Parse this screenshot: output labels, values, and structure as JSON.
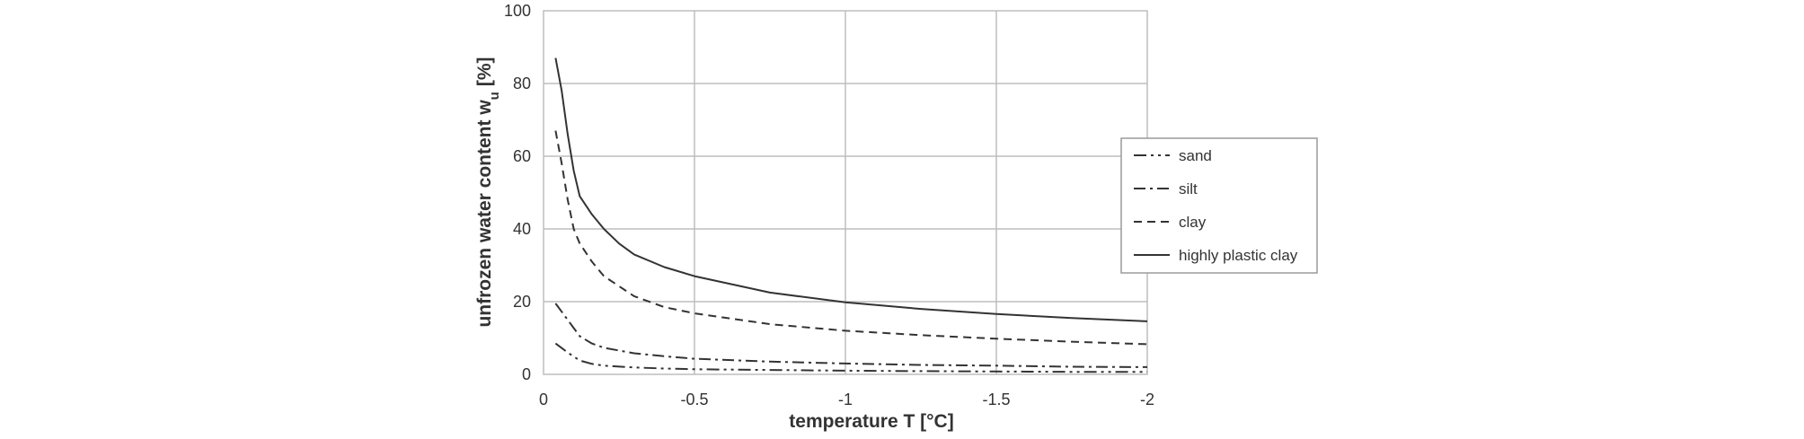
{
  "chart_data": {
    "type": "line",
    "title": "",
    "xlabel": "temperature T [°C]",
    "ylabel": "unfrozen water content w",
    "ylabel_subscript": "u",
    "ylabel_suffix": "[%]",
    "xlim": [
      0,
      -2
    ],
    "ylim": [
      0,
      100
    ],
    "xticks": [
      0,
      -0.5,
      -1,
      -1.5,
      -2
    ],
    "xtick_labels": [
      "0",
      "-0.5",
      "-1",
      "-1.5",
      "-2"
    ],
    "yticks": [
      0,
      20,
      40,
      60,
      80,
      100
    ],
    "ytick_labels": [
      "0",
      "20",
      "40",
      "60",
      "80",
      "100"
    ],
    "grid": true,
    "legend_position": "right",
    "series": [
      {
        "name": "sand",
        "dash": "dash-dot-dot",
        "color": "#333333",
        "points": [
          [
            -0.04,
            8.5
          ],
          [
            -0.08,
            6.0
          ],
          [
            -0.12,
            3.8
          ],
          [
            -0.16,
            2.9
          ],
          [
            -0.2,
            2.4
          ],
          [
            -0.3,
            1.9
          ],
          [
            -0.4,
            1.6
          ],
          [
            -0.5,
            1.4
          ],
          [
            -0.75,
            1.2
          ],
          [
            -1.0,
            1.0
          ],
          [
            -1.25,
            0.9
          ],
          [
            -1.5,
            0.8
          ],
          [
            -1.75,
            0.7
          ],
          [
            -2.0,
            0.7
          ]
        ]
      },
      {
        "name": "silt",
        "dash": "dash-dot",
        "color": "#333333",
        "points": [
          [
            -0.04,
            19.5
          ],
          [
            -0.08,
            15.0
          ],
          [
            -0.12,
            10.5
          ],
          [
            -0.16,
            8.5
          ],
          [
            -0.2,
            7.3
          ],
          [
            -0.3,
            5.8
          ],
          [
            -0.4,
            5.0
          ],
          [
            -0.5,
            4.3
          ],
          [
            -0.75,
            3.5
          ],
          [
            -1.0,
            3.0
          ],
          [
            -1.25,
            2.6
          ],
          [
            -1.5,
            2.4
          ],
          [
            -1.75,
            2.1
          ],
          [
            -2.0,
            2.0
          ]
        ]
      },
      {
        "name": "clay",
        "dash": "dash",
        "color": "#333333",
        "points": [
          [
            -0.04,
            67.0
          ],
          [
            -0.06,
            58.0
          ],
          [
            -0.08,
            48.0
          ],
          [
            -0.1,
            40.0
          ],
          [
            -0.12,
            36.0
          ],
          [
            -0.16,
            31.0
          ],
          [
            -0.2,
            27.0
          ],
          [
            -0.3,
            21.5
          ],
          [
            -0.4,
            18.5
          ],
          [
            -0.5,
            16.8
          ],
          [
            -0.75,
            13.8
          ],
          [
            -1.0,
            12.0
          ],
          [
            -1.25,
            10.8
          ],
          [
            -1.5,
            9.8
          ],
          [
            -1.75,
            9.0
          ],
          [
            -2.0,
            8.3
          ]
        ]
      },
      {
        "name": "highly plastic clay",
        "dash": "solid",
        "color": "#333333",
        "points": [
          [
            -0.04,
            87.0
          ],
          [
            -0.06,
            78.0
          ],
          [
            -0.08,
            66.0
          ],
          [
            -0.1,
            56.0
          ],
          [
            -0.12,
            49.0
          ],
          [
            -0.16,
            44.0
          ],
          [
            -0.2,
            40.0
          ],
          [
            -0.25,
            36.0
          ],
          [
            -0.3,
            33.0
          ],
          [
            -0.4,
            29.5
          ],
          [
            -0.5,
            27.0
          ],
          [
            -0.75,
            22.5
          ],
          [
            -1.0,
            19.8
          ],
          [
            -1.25,
            18.0
          ],
          [
            -1.5,
            16.6
          ],
          [
            -1.75,
            15.5
          ],
          [
            -2.0,
            14.6
          ]
        ]
      }
    ]
  }
}
